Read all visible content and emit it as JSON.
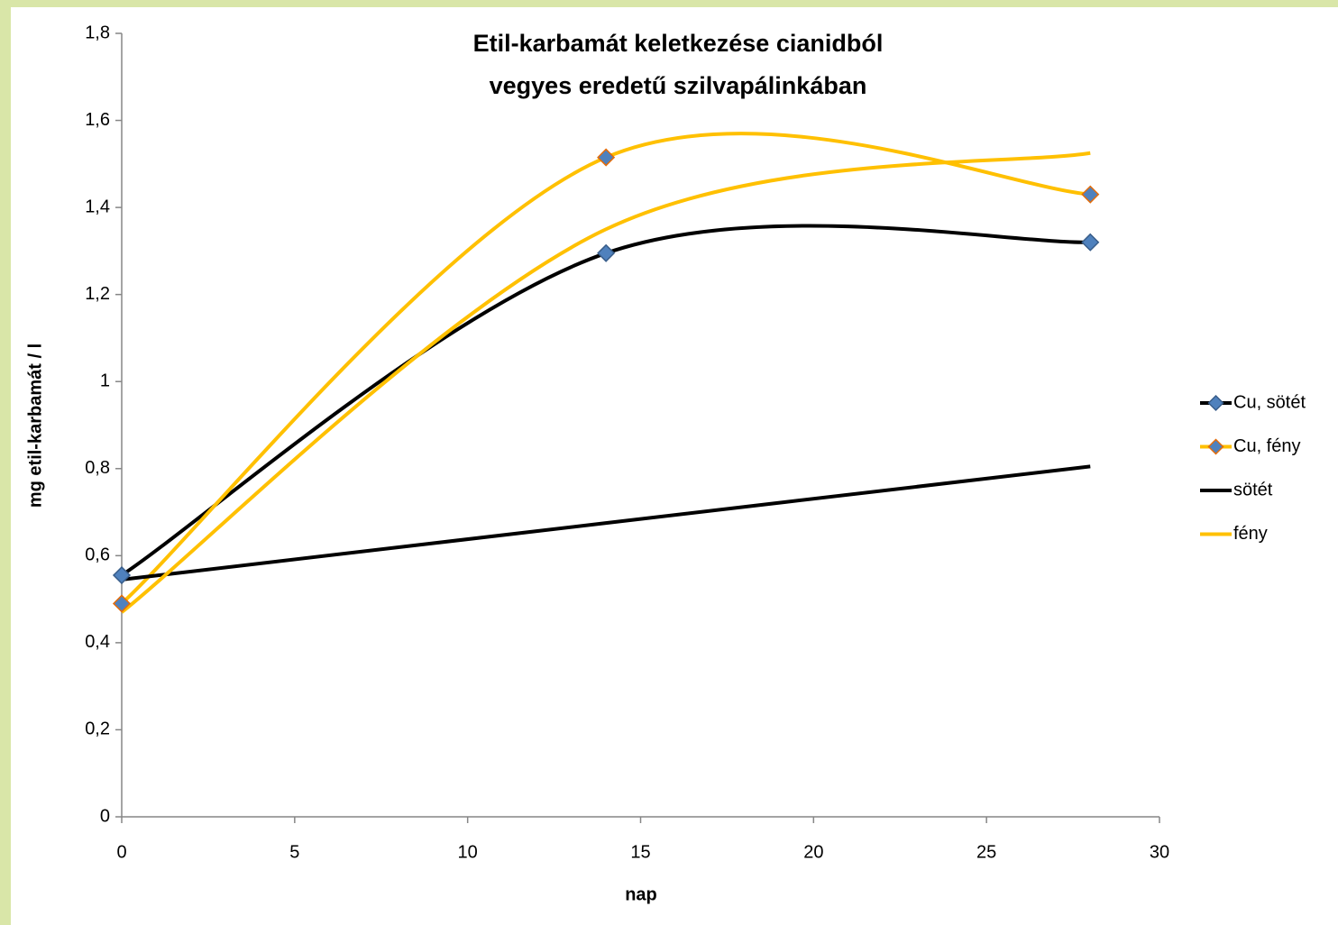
{
  "chart_data": {
    "type": "scatter-smooth",
    "title": [
      "Etil-karbamát keletkezése cianidból",
      "vegyes eredetű szilvapálinkában"
    ],
    "x_label": "nap",
    "y_label": "mg etil-karbamát / l",
    "xlim": [
      0,
      30
    ],
    "xticks": [
      0,
      5,
      10,
      15,
      20,
      25,
      30
    ],
    "ylim": [
      0,
      1.8
    ],
    "yticks": [
      0,
      {
        "value": 0.2,
        "label": "0,2"
      },
      {
        "value": 0.4,
        "label": "0,4"
      },
      {
        "value": 0.6,
        "label": "0,6"
      },
      {
        "value": 0.8,
        "label": "0,8"
      },
      1,
      {
        "value": 1.2,
        "label": "1,2"
      },
      {
        "value": 1.4,
        "label": "1,4"
      },
      {
        "value": 1.6,
        "label": "1,6"
      },
      {
        "value": 1.8,
        "label": "1,8"
      }
    ],
    "legend": "right",
    "series": [
      {
        "name": "Cu, sötét",
        "color": "#000000",
        "marker_color": "#4f81bd",
        "marker_edge": "#385d8a",
        "x": [
          0,
          14,
          28
        ],
        "values": [
          0.555,
          1.295,
          1.32
        ]
      },
      {
        "name": "Cu, fény",
        "color": "#ffc000",
        "marker_color": "#4f81bd",
        "marker_edge": "#e46c0a",
        "x": [
          0,
          14,
          28
        ],
        "values": [
          0.49,
          1.515,
          1.43
        ]
      },
      {
        "name": "sötét",
        "color": "#000000",
        "x": [
          0,
          14,
          28
        ],
        "values": [
          0.545,
          0.675,
          0.805
        ]
      },
      {
        "name": "fény",
        "color": "#ffc000",
        "x": [
          0,
          14,
          28
        ],
        "values": [
          0.47,
          1.35,
          1.525
        ]
      }
    ]
  }
}
